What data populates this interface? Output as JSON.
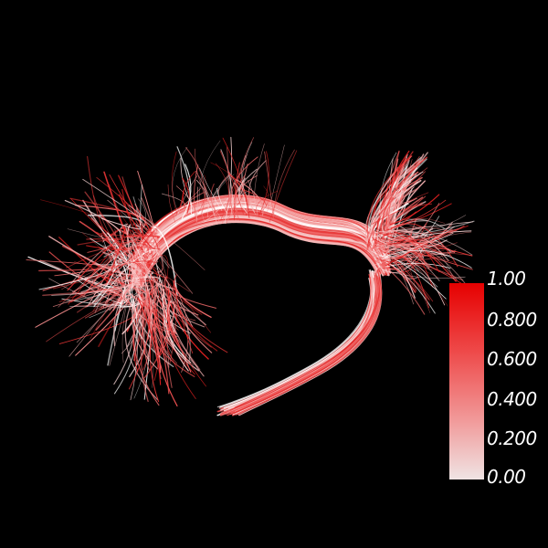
{
  "scene": {
    "background_color": "#000000",
    "subject": "fiber-tract-bundle"
  },
  "colorbar": {
    "labels": [
      "1.00",
      "0.800",
      "0.600",
      "0.400",
      "0.200",
      "0.00"
    ],
    "colors": {
      "max": "#e60000",
      "min": "#efe4e4"
    }
  }
}
